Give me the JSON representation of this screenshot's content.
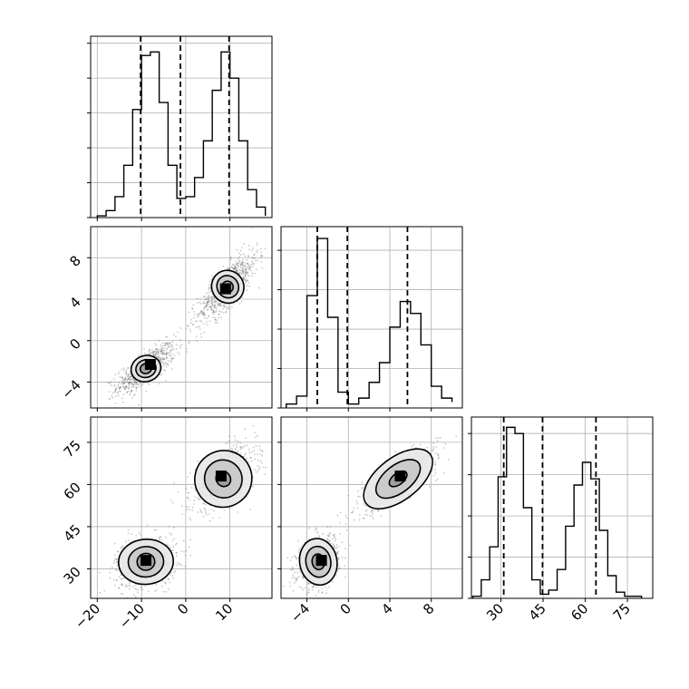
{
  "chart_data": {
    "type": "corner",
    "parameters": [
      {
        "xlim": [
          -21.5,
          19.5
        ],
        "ticks": [
          -20,
          -10,
          0,
          10
        ],
        "quantiles": [
          -10.2,
          -1.2,
          9.8
        ],
        "hist": {
          "edges": [
            -20,
            -18,
            -16,
            -14,
            -12,
            -10,
            -8,
            -6,
            -4,
            -2,
            0,
            2,
            4,
            6,
            8,
            10,
            12,
            14,
            16,
            18
          ],
          "counts": [
            1,
            4,
            12,
            30,
            62,
            93,
            95,
            66,
            30,
            11,
            12,
            23,
            44,
            73,
            95,
            80,
            44,
            16,
            6,
            1
          ],
          "ymax": 104
        }
      },
      {
        "xlim": [
          -6.5,
          11.0
        ],
        "ticks": [
          -4,
          0,
          4,
          8
        ],
        "quantiles": [
          -3.0,
          -0.1,
          5.7
        ],
        "hist": {
          "edges": [
            -6,
            -5,
            -4,
            -3,
            -2,
            -1,
            0,
            1,
            2,
            3,
            4,
            5,
            6,
            7,
            8,
            9,
            10
          ],
          "counts": [
            2,
            6,
            57,
            86,
            46,
            8,
            2,
            5,
            13,
            23,
            41,
            54,
            48,
            32,
            11,
            5,
            3
          ],
          "ymax": 92
        }
      },
      {
        "xlim": [
          19.5,
          84.0
        ],
        "ticks": [
          30,
          45,
          60,
          75
        ],
        "quantiles": [
          31.0,
          44.8,
          63.8
        ],
        "hist": {
          "edges": [
            20,
            23,
            26,
            29,
            32,
            35,
            38,
            41,
            44,
            47,
            50,
            53,
            56,
            59,
            62,
            65,
            68,
            71,
            74,
            77,
            80
          ],
          "counts": [
            1,
            9,
            25,
            59,
            83,
            80,
            44,
            9,
            2,
            4,
            14,
            35,
            55,
            66,
            58,
            33,
            11,
            3,
            1,
            1
          ],
          "ymax": 88
        }
      }
    ],
    "pairs": [
      {
        "row": 1,
        "col": 0,
        "clusters": [
          {
            "mean": [
              -9,
              -2.7
            ],
            "sd": [
              3.3,
              1.2
            ],
            "rho": 0.75,
            "n": 700,
            "contours": [
              [
                3.4,
                1.25,
                18
              ],
              [
                2.3,
                0.85,
                18
              ],
              [
                1.3,
                0.48,
                18
              ]
            ],
            "core": [
              -8,
              -2.3
            ]
          },
          {
            "mean": [
              9.5,
              5.2
            ],
            "sd": [
              3.4,
              1.7
            ],
            "rho": 0.8,
            "n": 800,
            "contours": [
              [
                3.6,
                1.6,
                35
              ],
              [
                2.4,
                1.1,
                35
              ],
              [
                1.2,
                0.55,
                35
              ]
            ],
            "core": [
              9,
              5
            ]
          }
        ]
      },
      {
        "row": 2,
        "col": 0,
        "clusters": [
          {
            "mean": [
              -9,
              32.5
            ],
            "sd": [
              3.5,
              4.6
            ],
            "rho": 0.2,
            "n": 700,
            "contours": [
              [
                6.2,
                8.0,
                5
              ],
              [
                4.0,
                5.4,
                5
              ],
              [
                2.0,
                3.0,
                5
              ]
            ],
            "core": [
              -9,
              33
            ]
          },
          {
            "mean": [
              8.5,
              62
            ],
            "sd": [
              3.7,
              5.6
            ],
            "rho": 0.55,
            "n": 800,
            "contours": [
              [
                6.5,
                10.0,
                35
              ],
              [
                4.2,
                6.8,
                35
              ],
              [
                1.6,
                2.8,
                35
              ]
            ],
            "core": [
              8,
              63
            ]
          }
        ]
      },
      {
        "row": 2,
        "col": 1,
        "clusters": [
          {
            "mean": [
              -2.9,
              32.5
            ],
            "sd": [
              1.0,
              4.6
            ],
            "rho": 0.3,
            "n": 700,
            "contours": [
              [
                1.8,
                8.3,
                10
              ],
              [
                1.2,
                5.5,
                10
              ],
              [
                0.6,
                2.8,
                10
              ]
            ],
            "core": [
              -2.6,
              33
            ]
          },
          {
            "mean": [
              4.8,
              62
            ],
            "sd": [
              1.9,
              5.6
            ],
            "rho": 0.8,
            "n": 800,
            "contours": [
              [
                3.9,
                7.5,
                38
              ],
              [
                2.5,
                4.9,
                38
              ],
              [
                1.0,
                2.0,
                38
              ]
            ],
            "core": [
              5,
              63
            ]
          }
        ]
      }
    ]
  }
}
